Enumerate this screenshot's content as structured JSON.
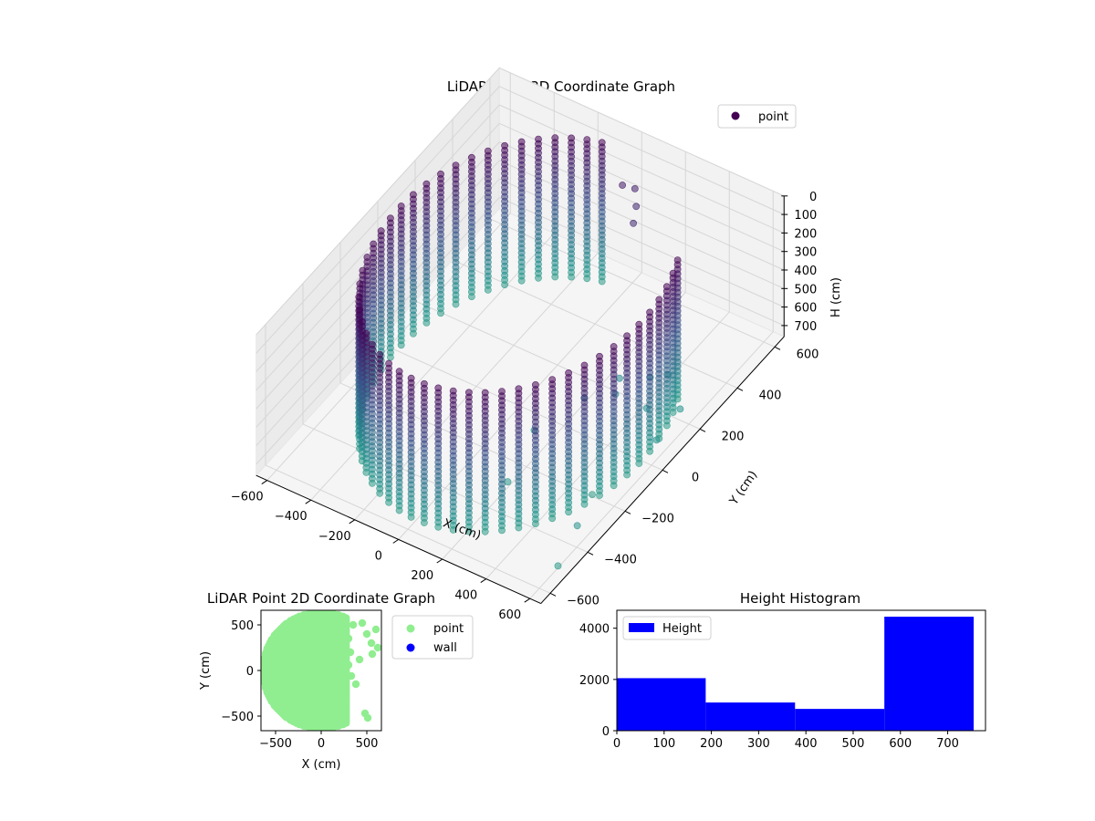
{
  "chart_data": [
    {
      "type": "scatter",
      "title": "LiDAR Point 3D Coordinate Graph",
      "xlabel": "X (cm)",
      "ylabel": "Y (cm)",
      "zlabel": "H (cm)",
      "xticks": [
        "−600",
        "−400",
        "−200",
        "0",
        "200",
        "400",
        "600"
      ],
      "yticks": [
        "−600",
        "−400",
        "−200",
        "0",
        "200",
        "400",
        "600"
      ],
      "zticks": [
        "0",
        "100",
        "200",
        "300",
        "400",
        "500",
        "600",
        "700"
      ],
      "xlim": [
        -650,
        650
      ],
      "ylim": [
        -650,
        650
      ],
      "zlim": [
        0,
        760
      ],
      "z_inverted": true,
      "legend": {
        "position": "top-right",
        "entries": [
          "point"
        ]
      },
      "colormap": "viridis",
      "series": [
        {
          "name": "point",
          "structure": "cylindrical wall of points, radius ~560 cm around the origin, spanning heights 0 to ~750 cm, with a gap on the +x side",
          "wall_radius": 560,
          "wall_angle_range_deg": [
            100,
            390
          ],
          "height_range": [
            0,
            750
          ],
          "extra_points": [
            {
              "x": 120,
              "y": 480,
              "h": 150
            },
            {
              "x": 80,
              "y": 520,
              "h": 120
            },
            {
              "x": 40,
              "y": 500,
              "h": 100
            },
            {
              "x": 150,
              "y": 430,
              "h": 170
            },
            {
              "x": 420,
              "y": 300,
              "h": 700
            },
            {
              "x": 380,
              "y": 250,
              "h": 680
            },
            {
              "x": 300,
              "y": 180,
              "h": 650
            },
            {
              "x": 350,
              "y": 100,
              "h": 620
            },
            {
              "x": 250,
              "y": 50,
              "h": 640
            },
            {
              "x": 450,
              "y": 150,
              "h": 700
            },
            {
              "x": 500,
              "y": -200,
              "h": 750
            },
            {
              "x": 600,
              "y": -500,
              "h": 750
            },
            {
              "x": 560,
              "y": -350,
              "h": 720
            },
            {
              "x": 200,
              "y": -300,
              "h": 730
            },
            {
              "x": 150,
              "y": -100,
              "h": 700
            },
            {
              "x": 560,
              "y": 200,
              "h": 700
            },
            {
              "x": 580,
              "y": 50,
              "h": 690
            }
          ]
        }
      ]
    },
    {
      "type": "scatter",
      "title": "LiDAR Point 2D Coordinate Graph",
      "xlabel": "X (cm)",
      "ylabel": "Y (cm)",
      "xticks": [
        "−500",
        "0",
        "500"
      ],
      "yticks": [
        "−500",
        "0",
        "500"
      ],
      "xlim": [
        -660,
        660
      ],
      "ylim": [
        -660,
        660
      ],
      "legend": {
        "position": "outside-right",
        "entries": [
          "point",
          "wall"
        ]
      },
      "series": [
        {
          "name": "point",
          "color": "#90ee90",
          "shape": "filled disc of radius ~640 cm; occupied region is x from -640 to ~280 with scattered points near x 400–620",
          "points": [
            {
              "x": 450,
              "y": 520
            },
            {
              "x": 500,
              "y": 400
            },
            {
              "x": 550,
              "y": 300
            },
            {
              "x": 600,
              "y": 450
            },
            {
              "x": 620,
              "y": 250
            },
            {
              "x": 380,
              "y": -150
            },
            {
              "x": 480,
              "y": -470
            },
            {
              "x": 510,
              "y": -520
            },
            {
              "x": 420,
              "y": 120
            },
            {
              "x": 560,
              "y": 180
            },
            {
              "x": 300,
              "y": 60
            },
            {
              "x": 330,
              "y": -60
            },
            {
              "x": 350,
              "y": 500
            },
            {
              "x": 300,
              "y": 350
            },
            {
              "x": 320,
              "y": 200
            }
          ]
        },
        {
          "name": "wall",
          "color": "#0000ff",
          "points": []
        }
      ]
    },
    {
      "type": "bar",
      "title": "Height Histogram",
      "xlabel": "",
      "ylabel": "",
      "xticks": [
        "0",
        "100",
        "200",
        "300",
        "400",
        "500",
        "600",
        "700"
      ],
      "yticks": [
        "0",
        "2000",
        "4000"
      ],
      "xlim": [
        0,
        780
      ],
      "ylim": [
        0,
        4700
      ],
      "legend": {
        "position": "top-left",
        "entries": [
          "Height"
        ]
      },
      "series": [
        {
          "name": "Height",
          "color": "#0000ff",
          "bins": [
            {
              "from": 0,
              "to": 188,
              "count": 2050
            },
            {
              "from": 188,
              "to": 377,
              "count": 1100
            },
            {
              "from": 377,
              "to": 566,
              "count": 850
            },
            {
              "from": 566,
              "to": 755,
              "count": 4450
            }
          ]
        }
      ]
    }
  ]
}
